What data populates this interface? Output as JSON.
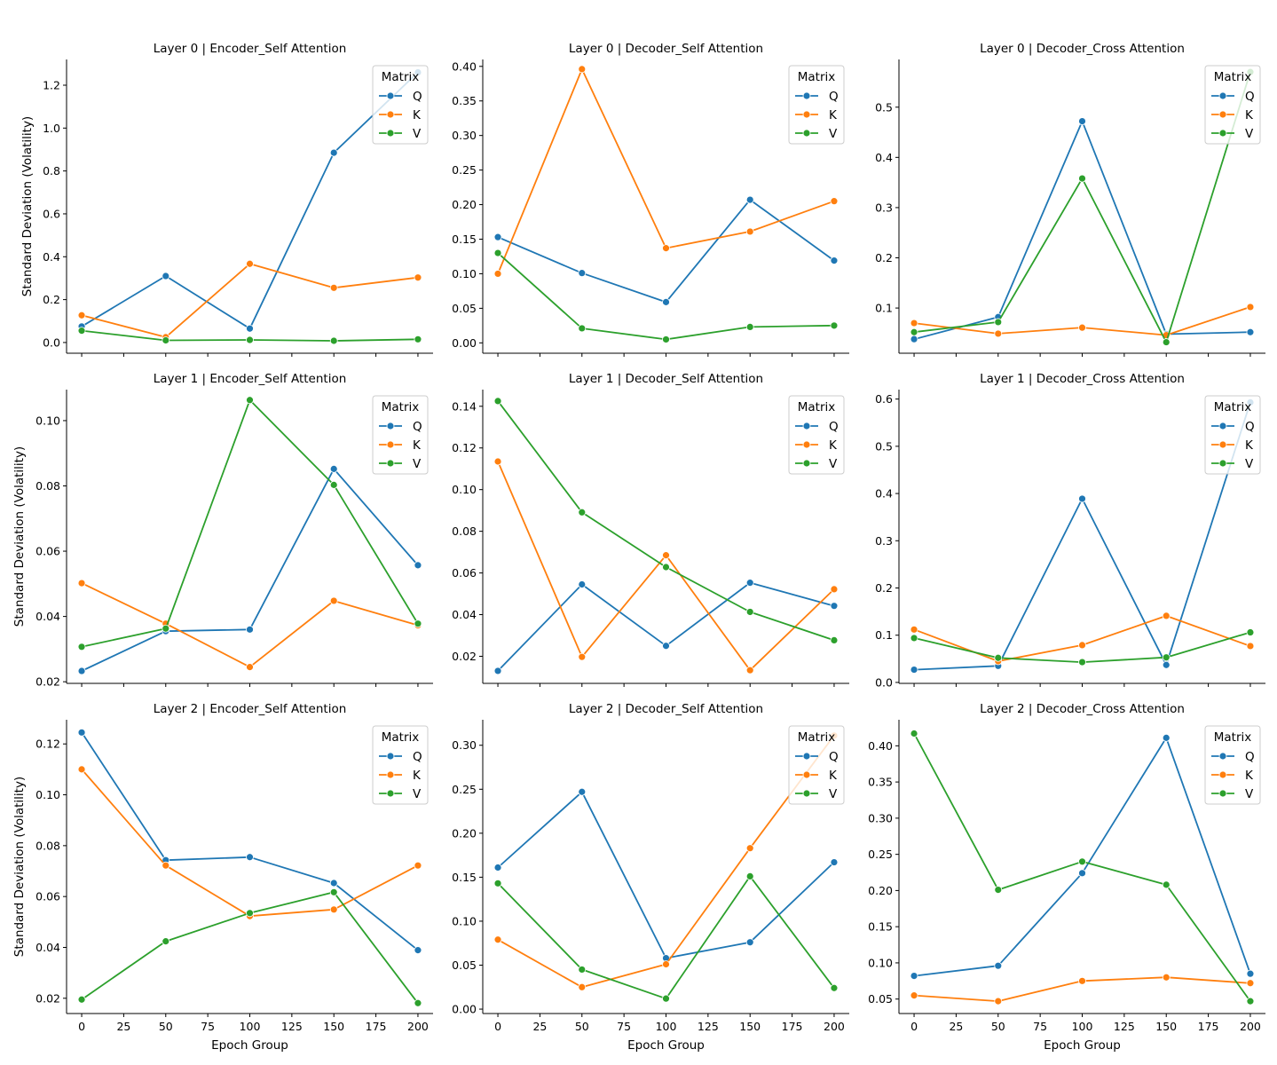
{
  "chart_data": {
    "type": "line",
    "colors": {
      "Q": "#1f77b4",
      "K": "#ff7f0e",
      "V": "#2ca02c"
    },
    "xlabel": "Epoch Group",
    "ylabel": "Standard Deviation (Volatility)",
    "x": [
      0,
      50,
      100,
      150,
      200
    ],
    "xticks": [
      0,
      25,
      50,
      75,
      100,
      125,
      150,
      175,
      200
    ],
    "xlim": [
      -9,
      209
    ],
    "legend": {
      "title": "Matrix",
      "placement": "top-right",
      "entries": [
        "Q",
        "K",
        "V"
      ]
    },
    "panels": [
      {
        "title": "Layer 0 | Encoder_Self Attention",
        "ylim": [
          -0.05,
          1.32
        ],
        "yticks": [
          0.0,
          0.2,
          0.4,
          0.6,
          0.8,
          1.0,
          1.2
        ],
        "ytick_labels": [
          "0.0",
          "0.2",
          "0.4",
          "0.6",
          "0.8",
          "1.0",
          "1.2"
        ],
        "series": [
          {
            "name": "Q",
            "values": [
              0.075,
              0.31,
              0.065,
              0.885,
              1.26
            ]
          },
          {
            "name": "K",
            "values": [
              0.127,
              0.025,
              0.367,
              0.255,
              0.303
            ]
          },
          {
            "name": "V",
            "values": [
              0.055,
              0.01,
              0.012,
              0.008,
              0.015
            ]
          }
        ]
      },
      {
        "title": "Layer 0 | Decoder_Self Attention",
        "ylim": [
          -0.015,
          0.41
        ],
        "yticks": [
          0.0,
          0.05,
          0.1,
          0.15,
          0.2,
          0.25,
          0.3,
          0.35,
          0.4
        ],
        "ytick_labels": [
          "0.00",
          "0.05",
          "0.10",
          "0.15",
          "0.20",
          "0.25",
          "0.30",
          "0.35",
          "0.40"
        ],
        "series": [
          {
            "name": "Q",
            "values": [
              0.153,
              0.101,
              0.059,
              0.207,
              0.119
            ]
          },
          {
            "name": "K",
            "values": [
              0.1,
              0.396,
              0.137,
              0.161,
              0.205
            ]
          },
          {
            "name": "V",
            "values": [
              0.13,
              0.021,
              0.005,
              0.023,
              0.025
            ]
          }
        ]
      },
      {
        "title": "Layer 0 | Decoder_Cross Attention",
        "ylim": [
          0.01,
          0.595
        ],
        "yticks": [
          0.1,
          0.2,
          0.3,
          0.4,
          0.5
        ],
        "ytick_labels": [
          "0.1",
          "0.2",
          "0.3",
          "0.4",
          "0.5"
        ],
        "series": [
          {
            "name": "Q",
            "values": [
              0.038,
              0.082,
              0.472,
              0.048,
              0.052
            ]
          },
          {
            "name": "K",
            "values": [
              0.07,
              0.049,
              0.061,
              0.046,
              0.102
            ]
          },
          {
            "name": "V",
            "values": [
              0.052,
              0.072,
              0.358,
              0.032,
              0.57
            ]
          }
        ]
      },
      {
        "title": "Layer 1 | Encoder_Self Attention",
        "ylim": [
          0.0195,
          0.1095
        ],
        "yticks": [
          0.02,
          0.04,
          0.06,
          0.08,
          0.1
        ],
        "ytick_labels": [
          "0.02",
          "0.04",
          "0.06",
          "0.08",
          "0.10"
        ],
        "series": [
          {
            "name": "Q",
            "values": [
              0.0233,
              0.0355,
              0.036,
              0.0852,
              0.0557
            ]
          },
          {
            "name": "K",
            "values": [
              0.0502,
              0.0378,
              0.0245,
              0.0448,
              0.0373
            ]
          },
          {
            "name": "V",
            "values": [
              0.0307,
              0.0363,
              0.1063,
              0.0803,
              0.0378
            ]
          }
        ]
      },
      {
        "title": "Layer 1 | Decoder_Self Attention",
        "ylim": [
          0.007,
          0.148
        ],
        "yticks": [
          0.02,
          0.04,
          0.06,
          0.08,
          0.1,
          0.12,
          0.14
        ],
        "ytick_labels": [
          "0.02",
          "0.04",
          "0.06",
          "0.08",
          "0.10",
          "0.12",
          "0.14"
        ],
        "series": [
          {
            "name": "Q",
            "values": [
              0.013,
              0.0545,
              0.025,
              0.0553,
              0.0442
            ]
          },
          {
            "name": "K",
            "values": [
              0.1135,
              0.0197,
              0.0685,
              0.0133,
              0.0522
            ]
          },
          {
            "name": "V",
            "values": [
              0.1425,
              0.0891,
              0.0628,
              0.0413,
              0.0277
            ]
          }
        ]
      },
      {
        "title": "Layer 1 | Decoder_Cross Attention",
        "ylim": [
          -0.002,
          0.62
        ],
        "yticks": [
          0.0,
          0.1,
          0.2,
          0.3,
          0.4,
          0.5,
          0.6
        ],
        "ytick_labels": [
          "0.0",
          "0.1",
          "0.2",
          "0.3",
          "0.4",
          "0.5",
          "0.6"
        ],
        "series": [
          {
            "name": "Q",
            "values": [
              0.027,
              0.035,
              0.389,
              0.037,
              0.593
            ]
          },
          {
            "name": "K",
            "values": [
              0.112,
              0.045,
              0.079,
              0.141,
              0.077
            ]
          },
          {
            "name": "V",
            "values": [
              0.094,
              0.052,
              0.043,
              0.053,
              0.106
            ]
          }
        ]
      },
      {
        "title": "Layer 2 | Encoder_Self Attention",
        "ylim": [
          0.014,
          0.1295
        ],
        "yticks": [
          0.02,
          0.04,
          0.06,
          0.08,
          0.1,
          0.12
        ],
        "ytick_labels": [
          "0.02",
          "0.04",
          "0.06",
          "0.08",
          "0.10",
          "0.12"
        ],
        "series": [
          {
            "name": "Q",
            "values": [
              0.1245,
              0.0743,
              0.0755,
              0.0653,
              0.0389
            ]
          },
          {
            "name": "K",
            "values": [
              0.11,
              0.0722,
              0.0523,
              0.0549,
              0.0722
            ]
          },
          {
            "name": "V",
            "values": [
              0.0195,
              0.0424,
              0.0535,
              0.0617,
              0.0181
            ]
          }
        ]
      },
      {
        "title": "Layer 2 | Decoder_Self Attention",
        "ylim": [
          -0.005,
          0.329
        ],
        "yticks": [
          0.0,
          0.05,
          0.1,
          0.15,
          0.2,
          0.25,
          0.3
        ],
        "ytick_labels": [
          "0.00",
          "0.05",
          "0.10",
          "0.15",
          "0.20",
          "0.25",
          "0.30"
        ],
        "series": [
          {
            "name": "Q",
            "values": [
              0.161,
              0.247,
              0.058,
              0.076,
              0.167
            ]
          },
          {
            "name": "K",
            "values": [
              0.079,
              0.025,
              0.051,
              0.183,
              0.311
            ]
          },
          {
            "name": "V",
            "values": [
              0.143,
              0.045,
              0.012,
              0.151,
              0.024
            ]
          }
        ]
      },
      {
        "title": "Layer 2 | Decoder_Cross Attention",
        "ylim": [
          0.03,
          0.436
        ],
        "yticks": [
          0.05,
          0.1,
          0.15,
          0.2,
          0.25,
          0.3,
          0.35,
          0.4
        ],
        "ytick_labels": [
          "0.05",
          "0.10",
          "0.15",
          "0.20",
          "0.25",
          "0.30",
          "0.35",
          "0.40"
        ],
        "series": [
          {
            "name": "Q",
            "values": [
              0.082,
              0.096,
              0.224,
              0.411,
              0.085
            ]
          },
          {
            "name": "K",
            "values": [
              0.055,
              0.047,
              0.075,
              0.08,
              0.072
            ]
          },
          {
            "name": "V",
            "values": [
              0.417,
              0.201,
              0.24,
              0.208,
              0.047
            ]
          }
        ]
      }
    ]
  }
}
